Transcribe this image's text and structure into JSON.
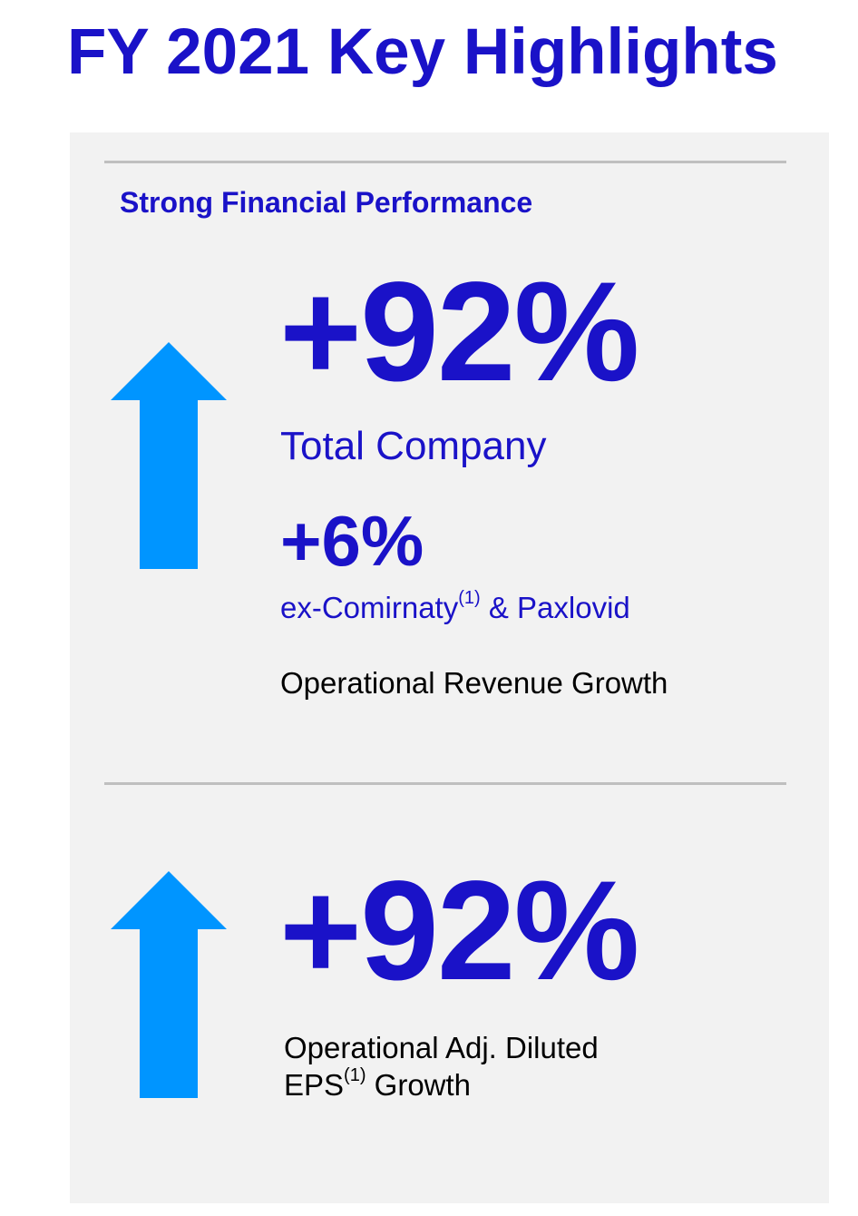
{
  "page": {
    "title": "FY 2021 Key Highlights"
  },
  "section": {
    "heading": "Strong Financial Performance"
  },
  "revenue": {
    "value": "+92%",
    "value_label": "Total Company",
    "secondary_value": "+6%",
    "secondary_label_prefix": "ex-Comirnaty",
    "secondary_label_footnote": "(1)",
    "secondary_label_suffix": " & Paxlovid",
    "caption": "Operational Revenue Growth",
    "arrow_icon": "up-arrow-icon"
  },
  "eps": {
    "value": "+92%",
    "caption_line1": "Operational Adj. Diluted",
    "caption_line2_prefix": "EPS",
    "caption_line2_footnote": "(1)",
    "caption_line2_suffix": " Growth",
    "arrow_icon": "up-arrow-icon"
  },
  "colors": {
    "primary_blue": "#1a12c8",
    "arrow_blue": "#0095ff",
    "panel_background": "#f2f2f2",
    "divider": "#bfbfbf"
  }
}
